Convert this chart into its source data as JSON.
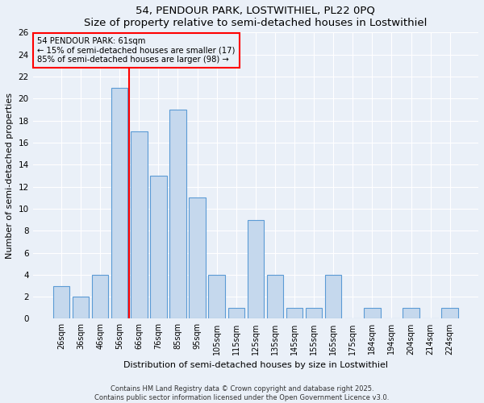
{
  "title1": "54, PENDOUR PARK, LOSTWITHIEL, PL22 0PQ",
  "title2": "Size of property relative to semi-detached houses in Lostwithiel",
  "xlabel": "Distribution of semi-detached houses by size in Lostwithiel",
  "ylabel": "Number of semi-detached properties",
  "categories": [
    "26sqm",
    "36sqm",
    "46sqm",
    "56sqm",
    "66sqm",
    "76sqm",
    "85sqm",
    "95sqm",
    "105sqm",
    "115sqm",
    "125sqm",
    "135sqm",
    "145sqm",
    "155sqm",
    "165sqm",
    "175sqm",
    "184sqm",
    "194sqm",
    "204sqm",
    "214sqm",
    "224sqm"
  ],
  "values": [
    3,
    2,
    4,
    21,
    17,
    13,
    19,
    11,
    4,
    1,
    9,
    4,
    1,
    1,
    4,
    0,
    1,
    0,
    1,
    0,
    1
  ],
  "bar_color": "#c5d8ed",
  "bar_edge_color": "#5b9bd5",
  "ref_line_x": 3.5,
  "ref_line_label": "54 PENDOUR PARK: 61sqm",
  "annotation_line1": "← 15% of semi-detached houses are smaller (17)",
  "annotation_line2": "85% of semi-detached houses are larger (98) →",
  "ylim": [
    0,
    26
  ],
  "yticks": [
    0,
    2,
    4,
    6,
    8,
    10,
    12,
    14,
    16,
    18,
    20,
    22,
    24,
    26
  ],
  "footer1": "Contains HM Land Registry data © Crown copyright and database right 2025.",
  "footer2": "Contains public sector information licensed under the Open Government Licence v3.0.",
  "bg_color": "#eaf0f8"
}
